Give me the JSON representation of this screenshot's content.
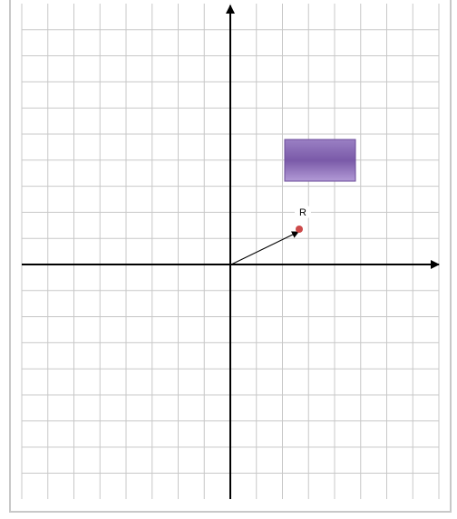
{
  "grid": {
    "line_color": "#c8c8c8",
    "axis_color": "#000000"
  },
  "shape": {
    "kind": "rectangle",
    "fill_top": "#9a80c4",
    "fill_mid": "#7a5aa8",
    "fill_bottom": "#b29ad6",
    "border": "#6a4a98"
  },
  "point": {
    "label": "R",
    "color": "#cc4a4a"
  },
  "vector": {
    "color": "#000000"
  }
}
